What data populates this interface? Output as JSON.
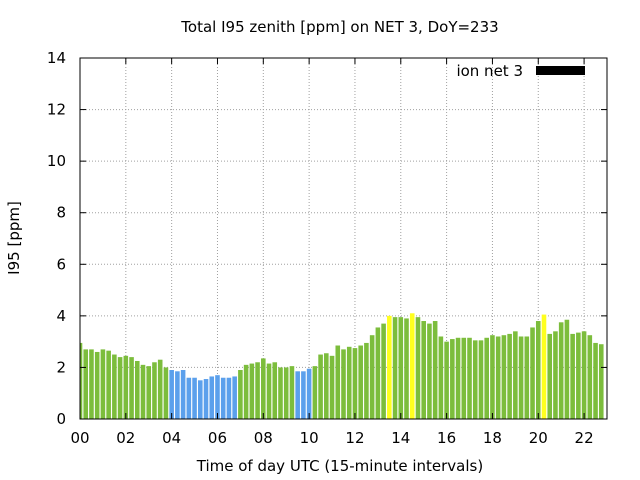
{
  "chart_data": {
    "type": "bar",
    "title": "Total I95 zenith [ppm] on NET 3, DoY=233",
    "xlabel": "Time of day UTC (15-minute intervals)",
    "ylabel": "I95 [ppm]",
    "xlim": [
      0,
      23
    ],
    "ylim": [
      0,
      14
    ],
    "x_step_hours": 0.25,
    "xticks": [
      "00",
      "02",
      "04",
      "06",
      "08",
      "10",
      "12",
      "14",
      "16",
      "18",
      "20",
      "22"
    ],
    "yticks": [
      "0",
      "2",
      "4",
      "6",
      "8",
      "10",
      "12",
      "14"
    ],
    "grid": true,
    "legend_position": "top-right",
    "series": [
      {
        "name": "ion net 3",
        "legend_color": "#000000",
        "values": [
          2.95,
          2.7,
          2.7,
          2.6,
          2.7,
          2.65,
          2.5,
          2.4,
          2.45,
          2.4,
          2.25,
          2.1,
          2.05,
          2.2,
          2.3,
          2.0,
          1.9,
          1.85,
          1.9,
          1.6,
          1.6,
          1.5,
          1.55,
          1.65,
          1.7,
          1.6,
          1.6,
          1.65,
          1.9,
          2.1,
          2.15,
          2.2,
          2.35,
          2.15,
          2.2,
          2.0,
          2.0,
          2.05,
          1.85,
          1.85,
          1.95,
          2.05,
          2.5,
          2.55,
          2.45,
          2.85,
          2.7,
          2.8,
          2.75,
          2.85,
          2.95,
          3.25,
          3.55,
          3.7,
          4.0,
          3.95,
          3.95,
          3.9,
          4.1,
          3.95,
          3.8,
          3.7,
          3.8,
          3.2,
          3.0,
          3.1,
          3.15,
          3.15,
          3.15,
          3.05,
          3.05,
          3.15,
          3.25,
          3.2,
          3.25,
          3.3,
          3.4,
          3.2,
          3.2,
          3.55,
          3.8,
          4.05,
          3.3,
          3.4,
          3.75,
          3.85,
          3.3,
          3.35,
          3.4,
          3.25,
          2.95,
          2.9
        ],
        "level": [
          "g",
          "g",
          "g",
          "g",
          "g",
          "g",
          "g",
          "g",
          "g",
          "g",
          "g",
          "g",
          "g",
          "g",
          "g",
          "g",
          "b",
          "b",
          "b",
          "b",
          "b",
          "b",
          "b",
          "b",
          "b",
          "b",
          "b",
          "b",
          "g",
          "g",
          "g",
          "g",
          "g",
          "g",
          "g",
          "g",
          "g",
          "g",
          "b",
          "b",
          "b",
          "g",
          "g",
          "g",
          "g",
          "g",
          "g",
          "g",
          "g",
          "g",
          "g",
          "g",
          "g",
          "g",
          "y",
          "g",
          "g",
          "g",
          "y",
          "g",
          "g",
          "g",
          "g",
          "g",
          "g",
          "g",
          "g",
          "g",
          "g",
          "g",
          "g",
          "g",
          "g",
          "g",
          "g",
          "g",
          "g",
          "g",
          "g",
          "g",
          "g",
          "y",
          "g",
          "g",
          "g",
          "g",
          "g",
          "g",
          "g",
          "g",
          "g",
          "g"
        ]
      }
    ],
    "level_colors": {
      "g": "#7cbd3c",
      "b": "#5ba0ec",
      "y": "#ffff1f"
    }
  }
}
